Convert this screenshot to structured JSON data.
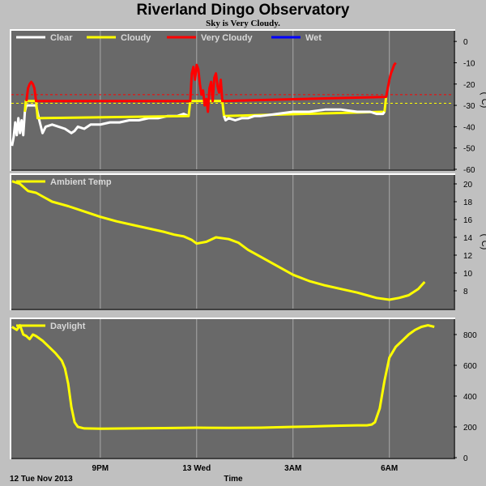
{
  "header": {
    "title": "Riverland Dingo Observatory",
    "subtitle": "Sky is Very Cloudy."
  },
  "footer": {
    "date_label": "12 Tue Nov 2013",
    "xlabel": "Time"
  },
  "colors": {
    "clear": "#ffffff",
    "cloudy": "#ffff00",
    "very_cloudy": "#ff0000",
    "wet": "#0000ff",
    "plot_bg": "#696969",
    "grid": "#a8a8a8",
    "page_bg": "#c0c0c0"
  },
  "chart_data": [
    {
      "type": "line",
      "panel": "sky",
      "unit": "(°C)",
      "xrange": [
        18.23,
        32.0
      ],
      "ylim": [
        -60,
        5
      ],
      "yticks": [
        0,
        -10,
        -20,
        -30,
        -40,
        -50,
        -60
      ],
      "xticks": [
        {
          "t": 21,
          "label": "9PM"
        },
        {
          "t": 24,
          "label": "13 Wed"
        },
        {
          "t": 27,
          "label": "3AM"
        },
        {
          "t": 30,
          "label": "6AM"
        }
      ],
      "grid": true,
      "legend_position": "top-left",
      "legend": [
        "Clear",
        "Cloudy",
        "Very Cloudy",
        "Wet"
      ],
      "thresholds": [
        {
          "value": -25,
          "color": "#ff0000"
        },
        {
          "value": -29,
          "color": "#ffff00"
        }
      ],
      "series": [
        {
          "name": "Clear",
          "color": "#ffffff",
          "t": [
            18.25,
            18.3,
            18.35,
            18.4,
            18.45,
            18.5,
            18.55,
            18.6,
            18.65,
            18.7,
            18.75,
            18.8,
            18.85,
            18.9,
            18.95,
            19.0,
            19.1,
            19.2,
            19.3,
            19.5,
            19.7,
            19.9,
            20.1,
            20.2,
            20.3,
            20.5,
            20.7,
            21.0,
            21.3,
            21.6,
            21.9,
            22.2,
            22.5,
            22.8,
            23.1,
            23.4,
            23.6,
            23.75
          ],
          "values": [
            -49,
            -45,
            -38,
            -44,
            -36,
            -43,
            -37,
            -44,
            -33,
            -30,
            -30,
            -30,
            -30,
            -30,
            -30,
            -30,
            -37,
            -43,
            -40,
            -39,
            -40,
            -41,
            -43,
            -42,
            -40,
            -41,
            -39,
            -39,
            -38,
            -38,
            -37,
            -37,
            -36,
            -36,
            -35,
            -35,
            -34,
            -35
          ]
        },
        {
          "name": "Cloudy",
          "color": "#ffff00",
          "t": [
            18.65,
            18.68,
            19.0,
            19.05,
            23.75,
            23.8,
            24.8,
            24.85,
            29.85,
            29.9
          ],
          "values": [
            -33,
            -28,
            -28,
            -36,
            -35,
            -28,
            -28,
            -35,
            -33,
            -26
          ]
        },
        {
          "name": "Very Cloudy",
          "color": "#ff0000",
          "t": [
            18.7,
            18.75,
            18.8,
            18.85,
            18.9,
            18.95,
            19.0,
            23.8,
            23.85,
            23.9,
            23.95,
            24.0,
            24.05,
            24.1,
            24.15,
            24.2,
            24.25,
            24.3,
            24.35,
            24.4,
            24.45,
            24.5,
            24.55,
            24.6,
            24.65,
            24.7,
            24.75,
            24.8,
            29.9,
            29.95,
            30.0,
            30.05,
            30.1,
            30.15,
            30.2
          ],
          "values": [
            -28,
            -22,
            -20,
            -19,
            -20,
            -22,
            -28,
            -28,
            -15,
            -12,
            -18,
            -11,
            -13,
            -20,
            -25,
            -23,
            -30,
            -27,
            -33,
            -22,
            -19,
            -28,
            -17,
            -15,
            -21,
            -24,
            -18,
            -28,
            -26,
            -22,
            -18,
            -15,
            -13,
            -11,
            -10
          ]
        },
        {
          "name": "Clear",
          "color": "#ffffff",
          "t": [
            24.85,
            24.9,
            25.0,
            25.2,
            25.4,
            25.6,
            25.8,
            26.0,
            26.5,
            27.0,
            27.5,
            28.0,
            28.5,
            29.0,
            29.4,
            29.6,
            29.8,
            29.85
          ],
          "values": [
            -35,
            -37,
            -36,
            -37,
            -36,
            -36,
            -35,
            -35,
            -34,
            -33,
            -33,
            -32,
            -32,
            -33,
            -33,
            -34,
            -34,
            -33
          ]
        }
      ]
    },
    {
      "type": "line",
      "panel": "ambient",
      "unit": "(°C)",
      "xrange": [
        18.23,
        32.0
      ],
      "ylim": [
        6,
        21
      ],
      "yticks": [
        8,
        10,
        12,
        14,
        16,
        18,
        20
      ],
      "xticks": [
        {
          "t": 21,
          "label": "9PM"
        },
        {
          "t": 24,
          "label": "13 Wed"
        },
        {
          "t": 27,
          "label": "3AM"
        },
        {
          "t": 30,
          "label": "6AM"
        }
      ],
      "grid": true,
      "legend_position": "top-left",
      "legend": [
        "Ambient Temp"
      ],
      "series": [
        {
          "name": "Ambient Temp",
          "color": "#ffff00",
          "t": [
            18.25,
            18.5,
            18.75,
            19.0,
            19.25,
            19.5,
            20.0,
            20.5,
            21.0,
            21.5,
            22.0,
            22.5,
            23.0,
            23.3,
            23.6,
            23.85,
            24.0,
            24.3,
            24.6,
            25.0,
            25.3,
            25.6,
            26.0,
            26.5,
            27.0,
            27.5,
            28.0,
            28.5,
            29.0,
            29.3,
            29.6,
            30.0,
            30.3,
            30.6,
            30.9,
            31.1
          ],
          "values": [
            20.3,
            20.0,
            19.2,
            19.0,
            18.5,
            18.0,
            17.5,
            16.9,
            16.3,
            15.8,
            15.4,
            15.0,
            14.6,
            14.3,
            14.1,
            13.7,
            13.3,
            13.5,
            14.0,
            13.8,
            13.4,
            12.6,
            11.8,
            10.8,
            9.8,
            9.1,
            8.6,
            8.2,
            7.8,
            7.5,
            7.2,
            7.0,
            7.2,
            7.5,
            8.2,
            9.0
          ]
        }
      ]
    },
    {
      "type": "line",
      "panel": "daylight",
      "unit": "",
      "xrange": [
        18.23,
        32.0
      ],
      "ylim": [
        0,
        900
      ],
      "yticks": [
        0,
        200,
        400,
        600,
        800
      ],
      "xticks": [
        {
          "t": 21,
          "label": "9PM"
        },
        {
          "t": 24,
          "label": "13 Wed"
        },
        {
          "t": 27,
          "label": "3AM"
        },
        {
          "t": 30,
          "label": "6AM"
        }
      ],
      "grid": true,
      "legend_position": "top-left",
      "legend": [
        "Daylight"
      ],
      "series": [
        {
          "name": "Daylight",
          "color": "#ffff00",
          "t": [
            18.25,
            18.4,
            18.5,
            18.6,
            18.7,
            18.8,
            18.9,
            19.0,
            19.2,
            19.4,
            19.6,
            19.8,
            19.9,
            20.0,
            20.1,
            20.2,
            20.3,
            20.5,
            21.0,
            22.0,
            23.0,
            24.0,
            25.0,
            26.0,
            27.0,
            27.5,
            28.0,
            28.5,
            29.0,
            29.3,
            29.45,
            29.55,
            29.7,
            29.85,
            30.0,
            30.2,
            30.4,
            30.6,
            30.8,
            31.0,
            31.2,
            31.4
          ],
          "values": [
            850,
            830,
            860,
            800,
            790,
            770,
            800,
            790,
            760,
            720,
            680,
            630,
            580,
            480,
            330,
            230,
            200,
            190,
            188,
            190,
            192,
            195,
            193,
            195,
            200,
            202,
            205,
            208,
            210,
            210,
            215,
            230,
            320,
            500,
            650,
            720,
            760,
            800,
            830,
            850,
            860,
            850
          ]
        }
      ]
    }
  ]
}
